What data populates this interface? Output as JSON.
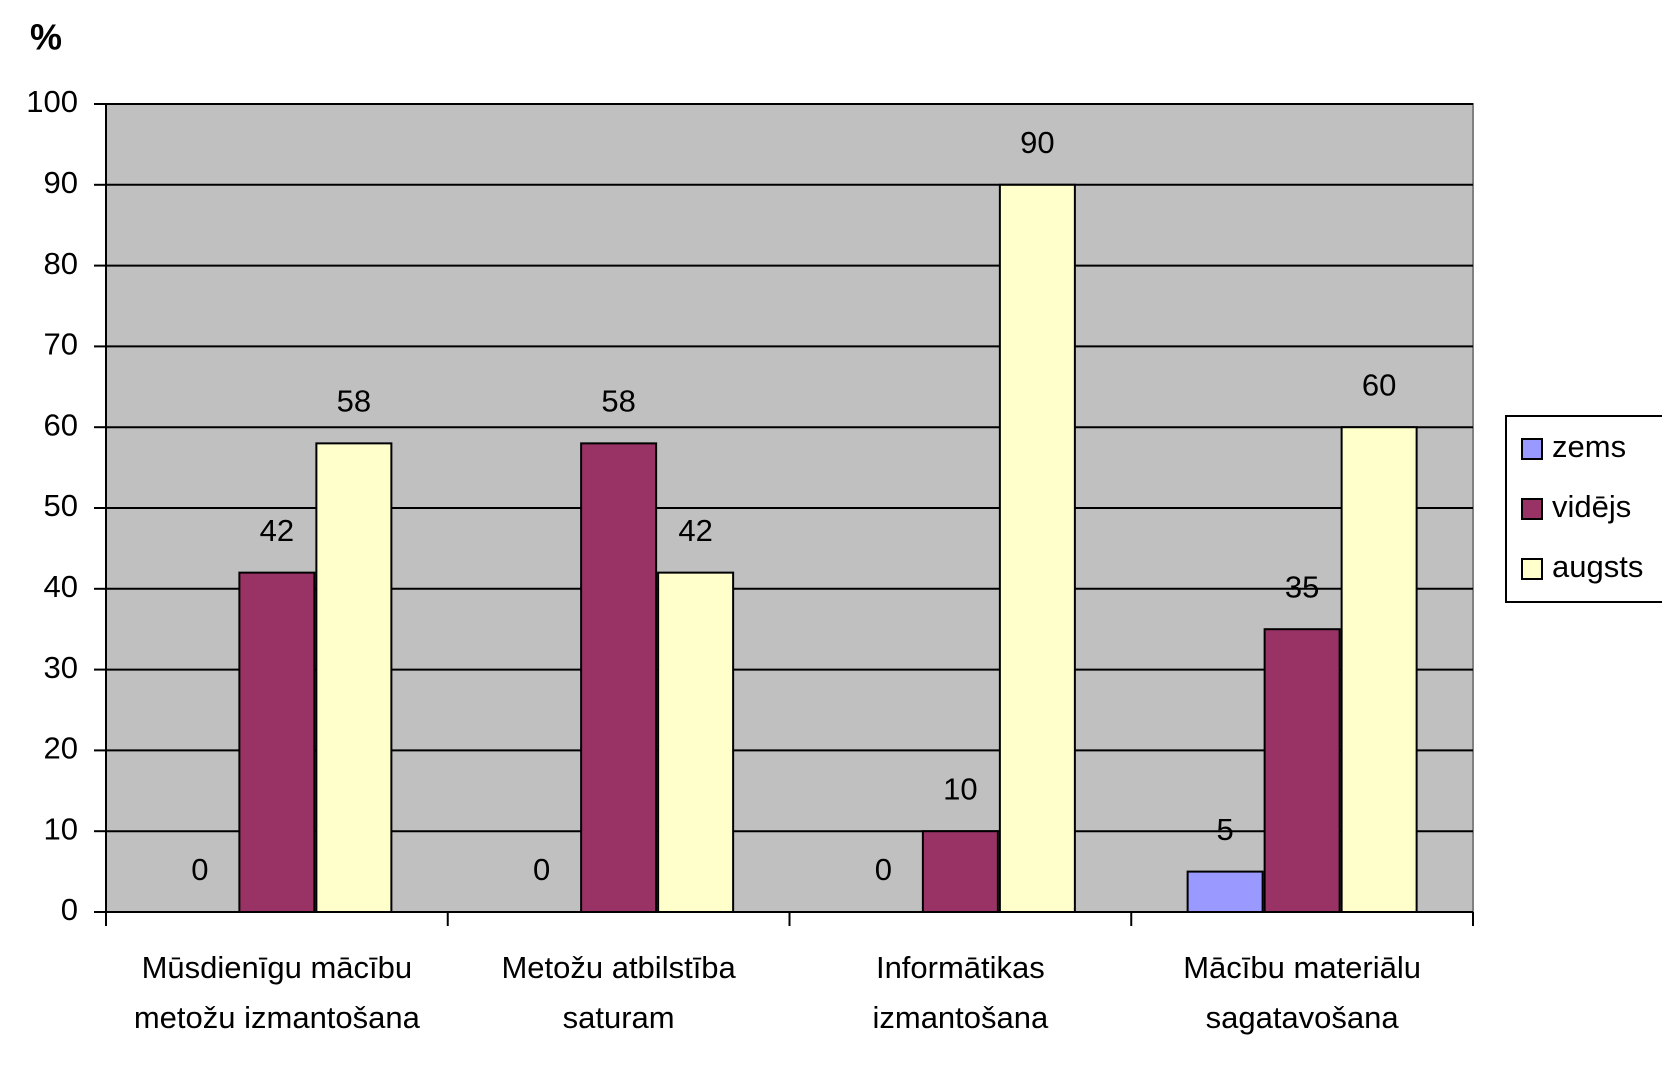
{
  "chart_data": {
    "type": "bar",
    "ylabel": "%",
    "categories": [
      "Mūsdienīgu mācību metožu izmantošana",
      "Metožu atbilstība saturam",
      "Informātikas izmantošana",
      "Mācību materiālu sagatavošana"
    ],
    "series": [
      {
        "name": "zems",
        "color": "#9999ff",
        "values": [
          0,
          0,
          0,
          5
        ]
      },
      {
        "name": "vidējs",
        "color": "#993366",
        "values": [
          42,
          58,
          10,
          35
        ]
      },
      {
        "name": "augsts",
        "color": "#ffffcc",
        "values": [
          58,
          42,
          90,
          60
        ]
      }
    ],
    "ylim": [
      0,
      100
    ],
    "yticks": [
      0,
      10,
      20,
      30,
      40,
      50,
      60,
      70,
      80,
      90,
      100
    ],
    "grid": true,
    "legend": "right",
    "plot_background": "#c0c0c0"
  }
}
